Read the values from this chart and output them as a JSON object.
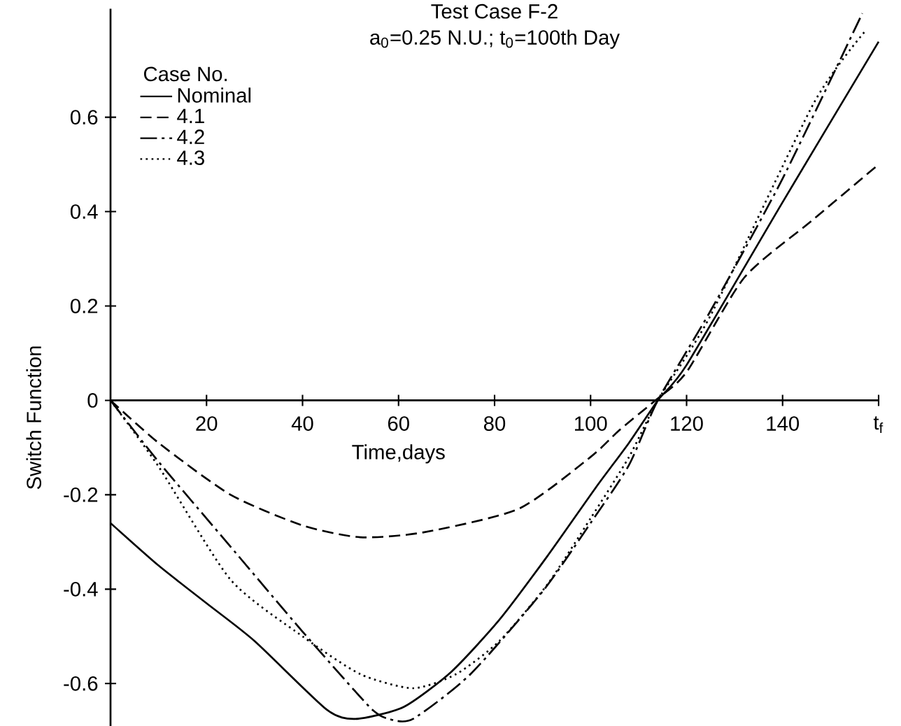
{
  "chart_data": {
    "type": "line",
    "title": "Test Case F-2",
    "subtitle": "a$_{0}$=0.25 N.U.; t$_{0}$=100th Day",
    "xlabel": "Time,days",
    "ylabel": "Switch Function",
    "legend_title": "Case No.",
    "legend": "top left",
    "marker": "none",
    "xlim": [
      0,
      160
    ],
    "ylim": [
      -0.69,
      0.83
    ],
    "xticks": [
      20,
      40,
      60,
      80,
      100,
      120,
      140,
      {
        "value": 160,
        "label": "t$_{f}$"
      }
    ],
    "yticks": [
      -0.6,
      -0.4,
      -0.2,
      0,
      0.2,
      0.4,
      0.6
    ],
    "series": [
      {
        "name": "Nominal",
        "color": "#000000",
        "line_style": "solid",
        "x": [
          0,
          10,
          20,
          30,
          45,
          51,
          61,
          71,
          81,
          91,
          101,
          108,
          114,
          120,
          140,
          160
        ],
        "values": [
          -0.26,
          -0.35,
          -0.43,
          -0.51,
          -0.655,
          -0.675,
          -0.65,
          -0.575,
          -0.465,
          -0.33,
          -0.186,
          -0.09,
          0,
          0.075,
          0.42,
          0.76
        ]
      },
      {
        "name": "4.1",
        "color": "#000000",
        "line_style": "dashed",
        "x": [
          0,
          10,
          25,
          40,
          52,
          65,
          85,
          100,
          106,
          113.5,
          120,
          132,
          146,
          160
        ],
        "values": [
          0,
          -0.09,
          -0.2,
          -0.265,
          -0.29,
          -0.28,
          -0.23,
          -0.12,
          -0.063,
          0,
          0.06,
          0.26,
          0.38,
          0.5
        ]
      },
      {
        "name": "4.2",
        "color": "#000000",
        "line_style": "dashdot",
        "x": [
          0,
          10,
          25,
          40,
          54,
          58,
          63,
          75,
          90,
          100,
          108,
          114,
          125,
          140,
          156.6
        ],
        "values": [
          0,
          -0.13,
          -0.31,
          -0.49,
          -0.65,
          -0.675,
          -0.675,
          -0.58,
          -0.405,
          -0.26,
          -0.137,
          0,
          0.19,
          0.47,
          0.82
        ]
      },
      {
        "name": "4.3",
        "color": "#000000",
        "line_style": "dotted",
        "x": [
          0,
          10,
          25,
          40,
          52,
          63,
          72,
          81,
          91,
          100,
          108,
          114,
          125,
          146.5,
          157
        ],
        "values": [
          0,
          -0.14,
          -0.38,
          -0.5,
          -0.58,
          -0.61,
          -0.58,
          -0.51,
          -0.39,
          -0.25,
          -0.12,
          0,
          0.18,
          0.63,
          0.78
        ]
      }
    ]
  }
}
